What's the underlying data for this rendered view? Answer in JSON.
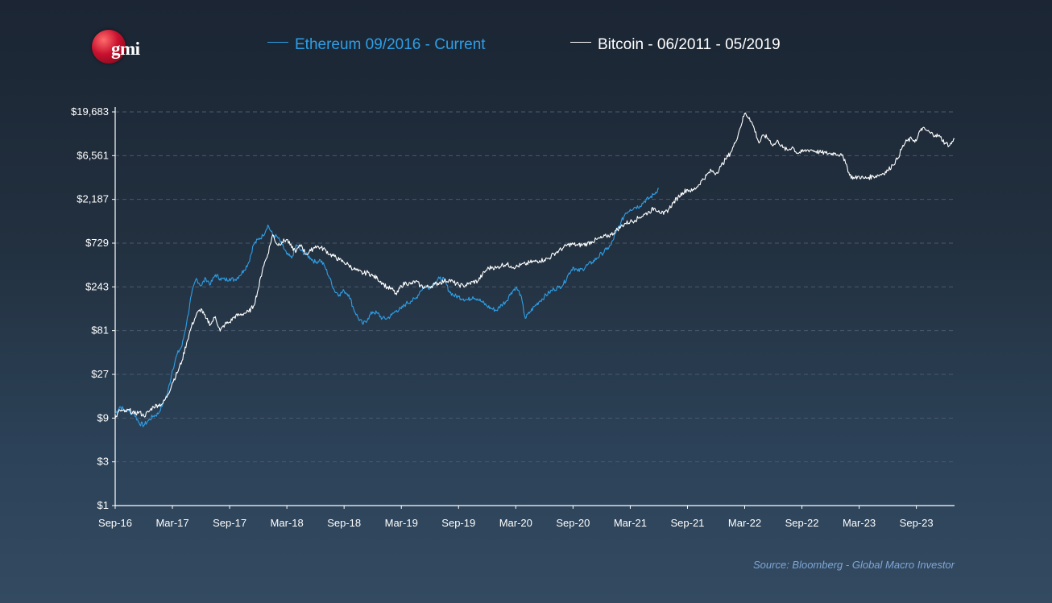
{
  "logo": {
    "text": "gmi"
  },
  "source": "Source: Bloomberg - Global Macro Investor",
  "colors": {
    "ethereum": "#2e9fe6",
    "bitcoin": "#ffffff",
    "axis": "#ffffff",
    "grid": "#4a5a6c",
    "source": "#7fa6d6"
  },
  "chart_data": {
    "type": "line",
    "title": "",
    "xlabel": "",
    "ylabel": "",
    "yscale": "log3",
    "ylim": [
      1,
      19683
    ],
    "xlim": [
      0,
      88
    ],
    "x_unit": "months since Sep-16",
    "y_ticks": [
      {
        "value": 1,
        "label": "$1"
      },
      {
        "value": 3,
        "label": "$3"
      },
      {
        "value": 9,
        "label": "$9"
      },
      {
        "value": 27,
        "label": "$27"
      },
      {
        "value": 81,
        "label": "$81"
      },
      {
        "value": 243,
        "label": "$243"
      },
      {
        "value": 729,
        "label": "$729"
      },
      {
        "value": 2187,
        "label": "$2,187"
      },
      {
        "value": 6561,
        "label": "$6,561"
      },
      {
        "value": 19683,
        "label": "$19,683"
      }
    ],
    "x_ticks": [
      {
        "value": 0,
        "label": "Sep-16"
      },
      {
        "value": 6,
        "label": "Mar-17"
      },
      {
        "value": 12,
        "label": "Sep-17"
      },
      {
        "value": 18,
        "label": "Mar-18"
      },
      {
        "value": 24,
        "label": "Sep-18"
      },
      {
        "value": 30,
        "label": "Mar-19"
      },
      {
        "value": 36,
        "label": "Sep-19"
      },
      {
        "value": 42,
        "label": "Mar-20"
      },
      {
        "value": 48,
        "label": "Sep-20"
      },
      {
        "value": 54,
        "label": "Mar-21"
      },
      {
        "value": 60,
        "label": "Sep-21"
      },
      {
        "value": 66,
        "label": "Mar-22"
      },
      {
        "value": 72,
        "label": "Sep-22"
      },
      {
        "value": 78,
        "label": "Mar-23"
      },
      {
        "value": 84,
        "label": "Sep-23"
      }
    ],
    "series": [
      {
        "name": "Ethereum 09/2016 - Current",
        "color": "#2e9fe6",
        "points": [
          [
            0,
            10
          ],
          [
            0.5,
            12
          ],
          [
            1,
            11
          ],
          [
            2,
            10
          ],
          [
            2.5,
            8
          ],
          [
            3,
            7.5
          ],
          [
            3.5,
            8.5
          ],
          [
            4,
            9.5
          ],
          [
            4.5,
            10
          ],
          [
            5,
            13
          ],
          [
            5.5,
            17
          ],
          [
            6,
            30
          ],
          [
            6.5,
            45
          ],
          [
            7,
            55
          ],
          [
            7.5,
            100
          ],
          [
            8,
            200
          ],
          [
            8.5,
            300
          ],
          [
            9,
            250
          ],
          [
            9.5,
            300
          ],
          [
            10,
            260
          ],
          [
            10.5,
            330
          ],
          [
            11,
            300
          ],
          [
            11.5,
            290
          ],
          [
            12,
            300
          ],
          [
            12.5,
            290
          ],
          [
            13,
            320
          ],
          [
            13.5,
            370
          ],
          [
            14,
            450
          ],
          [
            14.5,
            700
          ],
          [
            15,
            800
          ],
          [
            15.5,
            880
          ],
          [
            16,
            1150
          ],
          [
            16.5,
            900
          ],
          [
            17,
            850
          ],
          [
            17.5,
            700
          ],
          [
            18,
            550
          ],
          [
            18.5,
            500
          ],
          [
            19,
            700
          ],
          [
            19.5,
            600
          ],
          [
            20,
            550
          ],
          [
            20.5,
            500
          ],
          [
            21,
            450
          ],
          [
            21.5,
            480
          ],
          [
            22,
            400
          ],
          [
            22.5,
            300
          ],
          [
            23,
            220
          ],
          [
            23.5,
            200
          ],
          [
            24,
            220
          ],
          [
            24.5,
            200
          ],
          [
            25,
            140
          ],
          [
            25.5,
            110
          ],
          [
            26,
            95
          ],
          [
            26.5,
            110
          ],
          [
            27,
            130
          ],
          [
            27.5,
            125
          ],
          [
            28,
            110
          ],
          [
            28.5,
            110
          ],
          [
            29,
            120
          ],
          [
            29.5,
            135
          ],
          [
            30,
            140
          ],
          [
            30.5,
            160
          ],
          [
            31,
            170
          ],
          [
            31.5,
            180
          ],
          [
            32,
            220
          ],
          [
            32.5,
            250
          ],
          [
            33,
            240
          ],
          [
            33.5,
            270
          ],
          [
            34,
            300
          ],
          [
            34.5,
            290
          ],
          [
            35,
            220
          ],
          [
            35.5,
            195
          ],
          [
            36,
            190
          ],
          [
            36.5,
            180
          ],
          [
            37,
            175
          ],
          [
            37.5,
            190
          ],
          [
            38,
            180
          ],
          [
            38.5,
            165
          ],
          [
            39,
            150
          ],
          [
            39.5,
            140
          ],
          [
            40,
            135
          ],
          [
            40.5,
            155
          ],
          [
            41,
            170
          ],
          [
            41.5,
            210
          ],
          [
            42,
            240
          ],
          [
            42.5,
            200
          ],
          [
            43,
            110
          ],
          [
            43.5,
            130
          ],
          [
            44,
            150
          ],
          [
            44.5,
            170
          ],
          [
            45,
            190
          ],
          [
            45.5,
            210
          ],
          [
            46,
            230
          ],
          [
            46.5,
            240
          ],
          [
            47,
            260
          ],
          [
            47.5,
            330
          ],
          [
            48,
            400
          ],
          [
            48.5,
            360
          ],
          [
            49,
            380
          ],
          [
            49.5,
            420
          ],
          [
            50,
            450
          ],
          [
            50.5,
            500
          ],
          [
            51,
            560
          ],
          [
            51.5,
            620
          ],
          [
            52,
            700
          ],
          [
            52.5,
            950
          ],
          [
            53,
            1200
          ],
          [
            53.5,
            1550
          ],
          [
            54,
            1700
          ],
          [
            54.5,
            1800
          ],
          [
            55,
            1850
          ],
          [
            55.5,
            2100
          ],
          [
            56,
            2250
          ],
          [
            56.5,
            2500
          ],
          [
            57,
            2900
          ]
        ]
      },
      {
        "name": "Bitcoin - 06/2011 - 05/2019",
        "color": "#ffffff",
        "points": [
          [
            0,
            9
          ],
          [
            0.5,
            11
          ],
          [
            1,
            10.5
          ],
          [
            1.5,
            11
          ],
          [
            2,
            10
          ],
          [
            2.5,
            10.5
          ],
          [
            3,
            9.5
          ],
          [
            3.5,
            10.5
          ],
          [
            4,
            12
          ],
          [
            4.5,
            12.5
          ],
          [
            5,
            13
          ],
          [
            5.5,
            16
          ],
          [
            6,
            22
          ],
          [
            6.5,
            28
          ],
          [
            7,
            38
          ],
          [
            7.5,
            60
          ],
          [
            8,
            90
          ],
          [
            8.5,
            120
          ],
          [
            9,
            140
          ],
          [
            9.5,
            110
          ],
          [
            10,
            95
          ],
          [
            10.5,
            115
          ],
          [
            11,
            80
          ],
          [
            11.5,
            95
          ],
          [
            12,
            100
          ],
          [
            12.5,
            115
          ],
          [
            13,
            120
          ],
          [
            13.5,
            125
          ],
          [
            14,
            130
          ],
          [
            14.5,
            150
          ],
          [
            15,
            230
          ],
          [
            15.5,
            400
          ],
          [
            16,
            550
          ],
          [
            16.5,
            900
          ],
          [
            17,
            700
          ],
          [
            17.5,
            750
          ],
          [
            18,
            800
          ],
          [
            18.5,
            650
          ],
          [
            19,
            600
          ],
          [
            19.5,
            700
          ],
          [
            20,
            550
          ],
          [
            20.5,
            600
          ],
          [
            21,
            680
          ],
          [
            21.5,
            650
          ],
          [
            22,
            620
          ],
          [
            22.5,
            550
          ],
          [
            23,
            520
          ],
          [
            23.5,
            480
          ],
          [
            24,
            450
          ],
          [
            24.5,
            420
          ],
          [
            25,
            380
          ],
          [
            25.5,
            360
          ],
          [
            26,
            340
          ],
          [
            26.5,
            350
          ],
          [
            27,
            320
          ],
          [
            27.5,
            300
          ],
          [
            28,
            270
          ],
          [
            28.5,
            240
          ],
          [
            29,
            230
          ],
          [
            29.5,
            200
          ],
          [
            30,
            250
          ],
          [
            30.5,
            270
          ],
          [
            31,
            260
          ],
          [
            31.5,
            280
          ],
          [
            32,
            250
          ],
          [
            32.5,
            240
          ],
          [
            33,
            245
          ],
          [
            33.5,
            260
          ],
          [
            34,
            270
          ],
          [
            34.5,
            280
          ],
          [
            35,
            290
          ],
          [
            35.5,
            270
          ],
          [
            36,
            255
          ],
          [
            36.5,
            250
          ],
          [
            37,
            260
          ],
          [
            37.5,
            275
          ],
          [
            38,
            280
          ],
          [
            38.5,
            330
          ],
          [
            39,
            380
          ],
          [
            39.5,
            400
          ],
          [
            40,
            390
          ],
          [
            40.5,
            420
          ],
          [
            41,
            430
          ],
          [
            41.5,
            410
          ],
          [
            42,
            400
          ],
          [
            42.5,
            420
          ],
          [
            43,
            430
          ],
          [
            43.5,
            450
          ],
          [
            44,
            460
          ],
          [
            44.5,
            470
          ],
          [
            45,
            480
          ],
          [
            45.5,
            500
          ],
          [
            46,
            560
          ],
          [
            46.5,
            600
          ],
          [
            47,
            650
          ],
          [
            47.5,
            700
          ],
          [
            48,
            710
          ],
          [
            48.5,
            690
          ],
          [
            49,
            700
          ],
          [
            49.5,
            720
          ],
          [
            50,
            760
          ],
          [
            50.5,
            800
          ],
          [
            51,
            830
          ],
          [
            51.5,
            870
          ],
          [
            52,
            900
          ],
          [
            52.5,
            1000
          ],
          [
            53,
            1100
          ],
          [
            53.5,
            1200
          ],
          [
            54,
            1250
          ],
          [
            54.5,
            1300
          ],
          [
            55,
            1400
          ],
          [
            55.5,
            1500
          ],
          [
            56,
            1600
          ],
          [
            56.5,
            1750
          ],
          [
            57,
            1650
          ],
          [
            57.5,
            1500
          ],
          [
            58,
            1700
          ],
          [
            58.5,
            2000
          ],
          [
            59,
            2300
          ],
          [
            59.5,
            2600
          ],
          [
            60,
            2800
          ],
          [
            60.5,
            2700
          ],
          [
            61,
            3000
          ],
          [
            61.5,
            3500
          ],
          [
            62,
            4000
          ],
          [
            62.5,
            4500
          ],
          [
            63,
            4200
          ],
          [
            63.5,
            5000
          ],
          [
            64,
            6000
          ],
          [
            64.5,
            7000
          ],
          [
            65,
            9000
          ],
          [
            65.5,
            13000
          ],
          [
            66,
            19000
          ],
          [
            66.5,
            17000
          ],
          [
            67,
            13000
          ],
          [
            67.5,
            9000
          ],
          [
            68,
            11000
          ],
          [
            68.5,
            10000
          ],
          [
            69,
            8500
          ],
          [
            69.5,
            9500
          ],
          [
            70,
            8000
          ],
          [
            70.5,
            7500
          ],
          [
            71,
            8200
          ],
          [
            71.5,
            7000
          ],
          [
            72,
            7200
          ],
          [
            72.5,
            7500
          ],
          [
            73,
            7600
          ],
          [
            73.5,
            7300
          ],
          [
            74,
            7100
          ],
          [
            74.5,
            7000
          ],
          [
            75,
            6900
          ],
          [
            75.5,
            7000
          ],
          [
            76,
            6700
          ],
          [
            76.5,
            6000
          ],
          [
            77,
            4000
          ],
          [
            77.5,
            3700
          ],
          [
            78,
            3900
          ],
          [
            78.5,
            3700
          ],
          [
            79,
            3800
          ],
          [
            79.5,
            3900
          ],
          [
            80,
            4000
          ],
          [
            80.5,
            4200
          ],
          [
            81,
            4500
          ],
          [
            81.5,
            5200
          ],
          [
            82,
            6000
          ],
          [
            82.5,
            8000
          ],
          [
            83,
            9500
          ],
          [
            83.5,
            10000
          ],
          [
            84,
            9500
          ],
          [
            84.5,
            13000
          ],
          [
            85,
            12500
          ],
          [
            85.5,
            11500
          ],
          [
            86,
            11000
          ],
          [
            86.5,
            10500
          ],
          [
            87,
            9000
          ],
          [
            87.5,
            8500
          ],
          [
            88,
            10000
          ]
        ]
      }
    ]
  }
}
